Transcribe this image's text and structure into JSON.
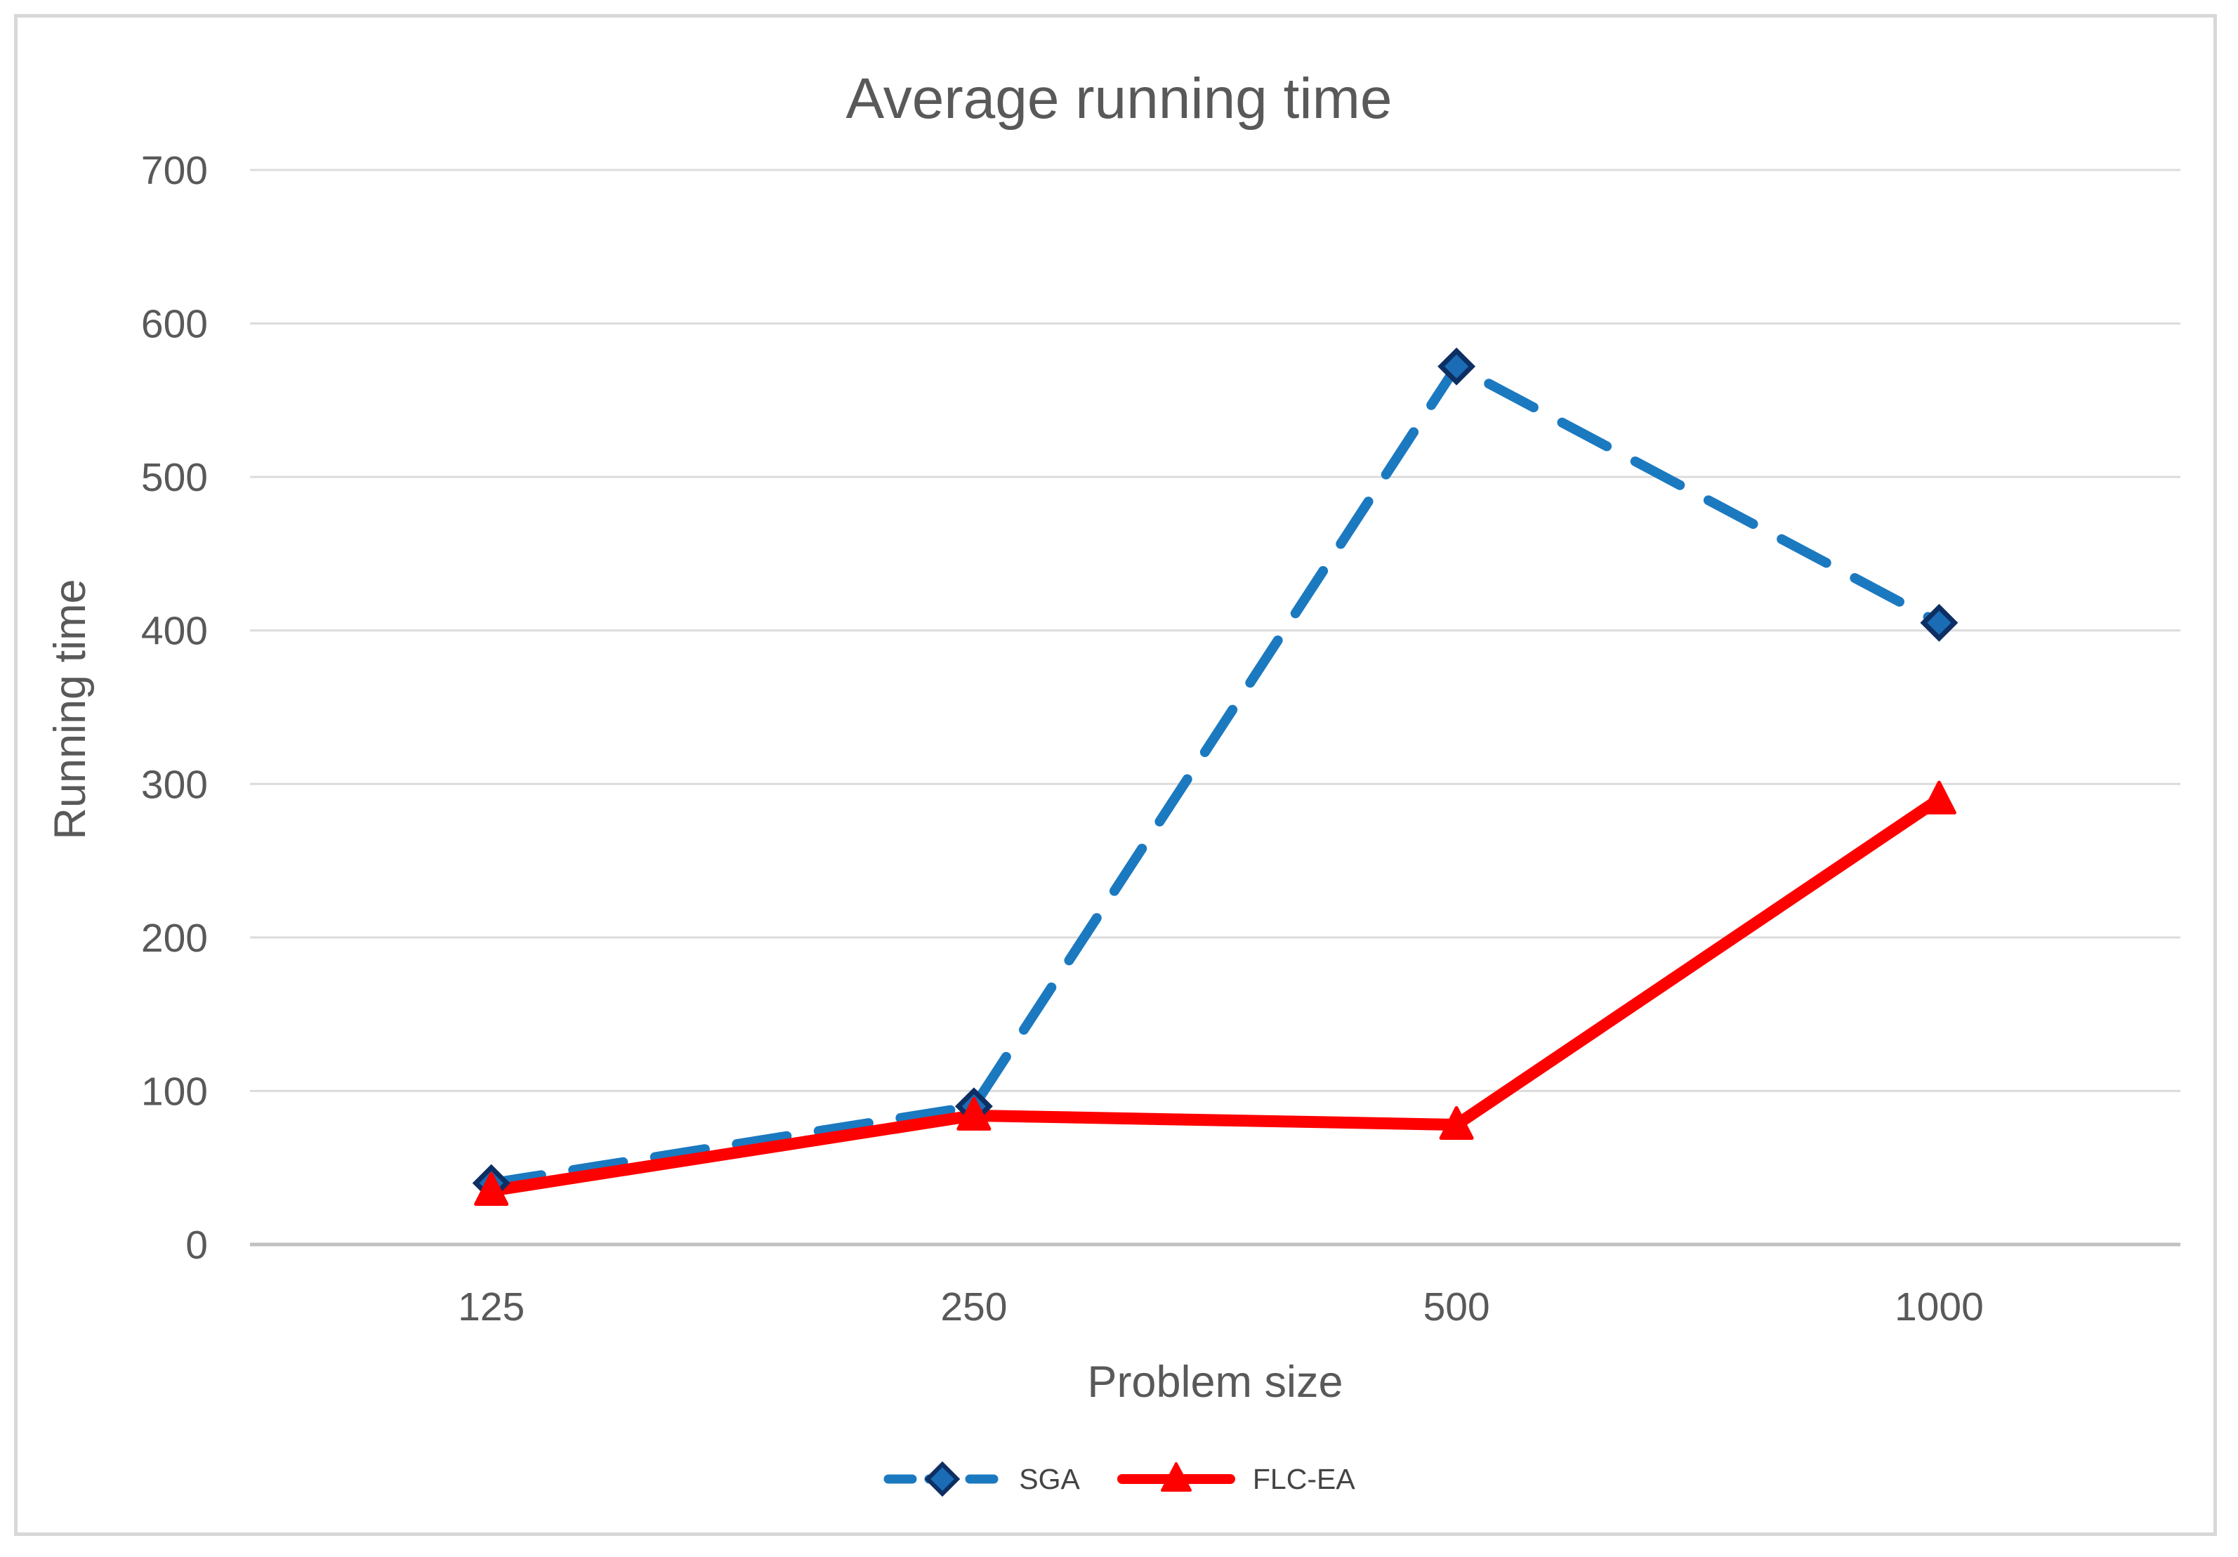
{
  "chart_data": {
    "type": "line",
    "title": "Average running time",
    "xlabel": "Problem size",
    "ylabel": "Running time",
    "categories": [
      "125",
      "250",
      "500",
      "1000"
    ],
    "y_ticks": [
      0,
      100,
      200,
      300,
      400,
      500,
      600,
      700
    ],
    "ylim": [
      0,
      700
    ],
    "grid": "horizontal-only",
    "legend_position": "bottom-center",
    "series": [
      {
        "name": "SGA",
        "values": [
          40,
          90,
          572,
          405
        ],
        "color": "#1b79c0",
        "line_style": "dashed",
        "marker": "diamond",
        "marker_fill": "#1a6db5",
        "marker_border": "#0e2f63"
      },
      {
        "name": "FLC-EA",
        "values": [
          35,
          84,
          78,
          290
        ],
        "color": "#ff0000",
        "line_style": "solid",
        "marker": "triangle",
        "marker_fill": "#ff0000",
        "marker_border": "#ff0000"
      }
    ],
    "colors": {
      "text": "#595959",
      "legend_text": "#444444",
      "gridline": "#dcdcdc",
      "zero_line": "#c1c1c1",
      "frame_border": "#d8d8d8",
      "background": "#ffffff"
    }
  }
}
